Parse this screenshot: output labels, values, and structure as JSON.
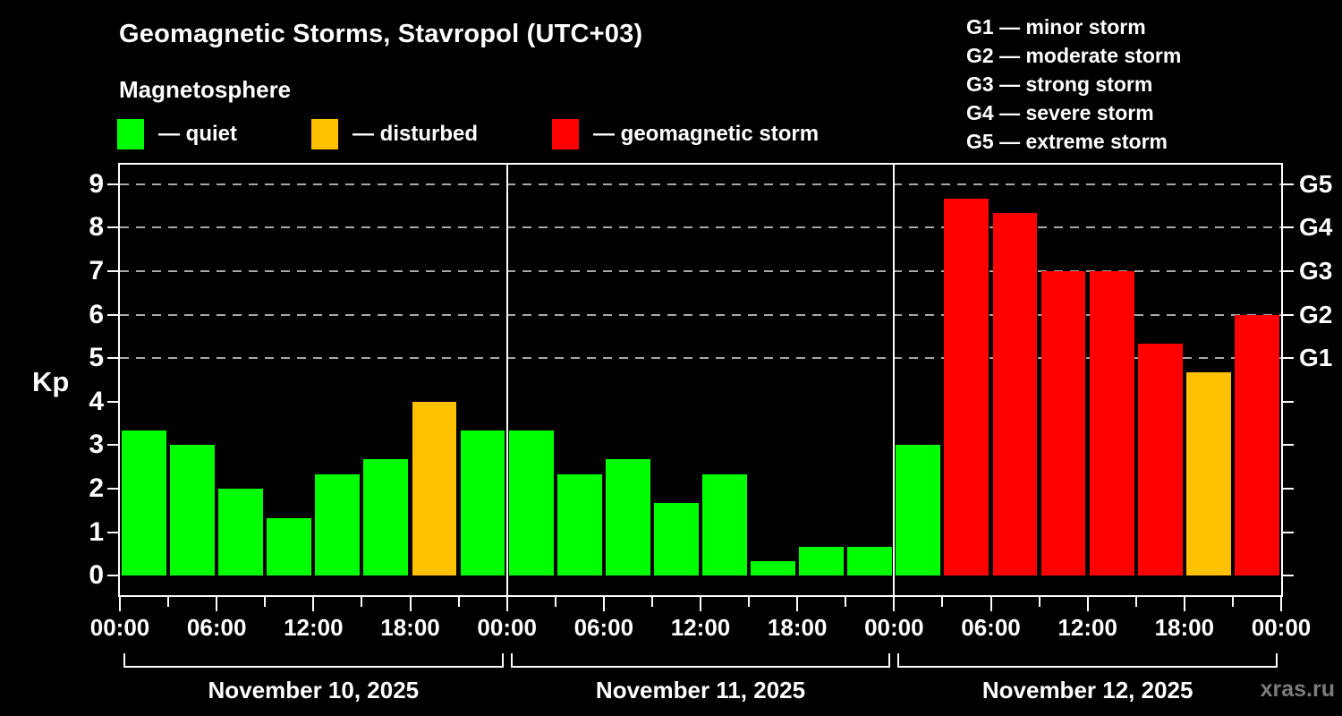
{
  "header": {
    "title": "Geomagnetic Storms, Stavropol (UTC+03)",
    "subtitle": "Magnetosphere"
  },
  "legend": {
    "items": [
      {
        "key": "quiet",
        "label": "— quiet",
        "color": "#00ff00"
      },
      {
        "key": "disturbed",
        "label": "— disturbed",
        "color": "#ffc000"
      },
      {
        "key": "storm",
        "label": "— geomagnetic storm",
        "color": "#ff0000"
      }
    ]
  },
  "storm_scale": [
    {
      "code": "G1",
      "desc": "minor storm",
      "text": "G1 — minor storm",
      "kp": 5
    },
    {
      "code": "G2",
      "desc": "moderate storm",
      "text": "G2 — moderate storm",
      "kp": 6
    },
    {
      "code": "G3",
      "desc": "strong storm",
      "text": "G3 — strong storm",
      "kp": 7
    },
    {
      "code": "G4",
      "desc": "severe storm",
      "text": "G4 — severe storm",
      "kp": 8
    },
    {
      "code": "G5",
      "desc": "extreme storm",
      "text": "G5 — extreme storm",
      "kp": 9
    }
  ],
  "axes": {
    "ylabel": "Kp",
    "y_ticks": [
      0,
      1,
      2,
      3,
      4,
      5,
      6,
      7,
      8,
      9
    ],
    "grid_levels": [
      5,
      6,
      7,
      8,
      9
    ],
    "x_time_labels": [
      "00:00",
      "06:00",
      "12:00",
      "18:00"
    ],
    "hours_per_bar": 3
  },
  "colors": {
    "background": "#000000",
    "frame": "#ffffff",
    "grid": "#a8a8a8",
    "quiet": "#00ff00",
    "disturbed": "#ffc000",
    "storm": "#ff0000",
    "watermark": "#7b7b7b"
  },
  "watermark": "xras.ru",
  "chart_data": {
    "type": "bar",
    "title": "Geomagnetic Storms, Stavropol (UTC+03)",
    "xlabel": "",
    "ylabel": "Kp",
    "ylim": [
      -0.45,
      9.45
    ],
    "grid": "dashed horizontal lines at Kp 5-9 only",
    "legend_position": "top",
    "days": [
      {
        "date": "November 10, 2025",
        "values": [
          3.33,
          3,
          2,
          1.33,
          2.33,
          2.67,
          4,
          3.33
        ],
        "status": [
          "quiet",
          "quiet",
          "quiet",
          "quiet",
          "quiet",
          "quiet",
          "disturbed",
          "quiet"
        ]
      },
      {
        "date": "November 11, 2025",
        "values": [
          3.33,
          2.33,
          2.67,
          1.67,
          2.33,
          0.33,
          0.67,
          0.67
        ],
        "status": [
          "quiet",
          "quiet",
          "quiet",
          "quiet",
          "quiet",
          "quiet",
          "quiet",
          "quiet"
        ]
      },
      {
        "date": "November 12, 2025",
        "values": [
          3,
          8.67,
          8.33,
          7,
          7,
          5.33,
          4.67,
          6
        ],
        "status": [
          "quiet",
          "storm",
          "storm",
          "storm",
          "storm",
          "storm",
          "disturbed",
          "storm"
        ]
      }
    ]
  }
}
